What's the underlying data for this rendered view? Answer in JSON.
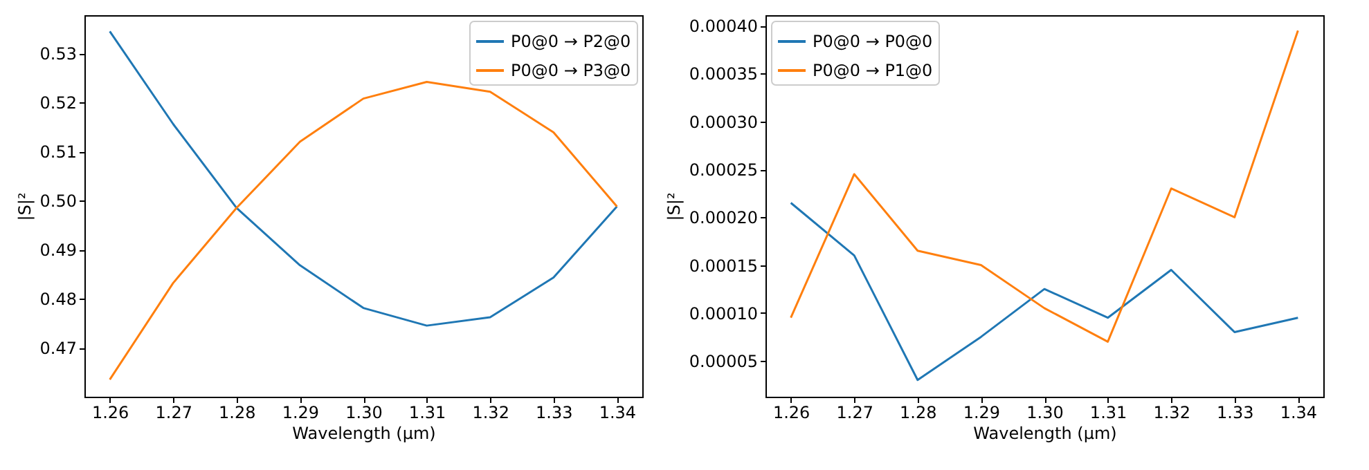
{
  "chart_data": [
    {
      "type": "line",
      "xlabel": "Wavelength (µm)",
      "ylabel": "|S|²",
      "legend": "top right",
      "grid": false,
      "x": [
        1.26,
        1.27,
        1.28,
        1.29,
        1.3,
        1.31,
        1.32,
        1.33,
        1.34
      ],
      "series": [
        {
          "name": "P0@0 → P2@0",
          "color": "#1f77b4",
          "values": [
            0.5345,
            0.5156,
            0.4985,
            0.4868,
            0.4781,
            0.4745,
            0.4762,
            0.4843,
            0.4988
          ]
        },
        {
          "name": "P0@0 → P3@0",
          "color": "#ff7f0e",
          "values": [
            0.4635,
            0.4832,
            0.4985,
            0.512,
            0.5208,
            0.5242,
            0.5222,
            0.5139,
            0.4988
          ]
        }
      ],
      "xlim": [
        1.256,
        1.344
      ],
      "ylim": [
        0.46,
        0.5378
      ],
      "xticks": [
        1.26,
        1.27,
        1.28,
        1.29,
        {
          "value": 1.3,
          "label": "1.30"
        },
        1.31,
        1.32,
        1.33,
        1.34
      ],
      "yticks": [
        0.47,
        0.48,
        0.49,
        {
          "value": 0.5,
          "label": "0.50"
        },
        0.51,
        0.52,
        0.53
      ]
    },
    {
      "type": "line",
      "xlabel": "Wavelength (µm)",
      "ylabel": "|S|²",
      "legend": "top left",
      "grid": false,
      "x": [
        1.26,
        1.27,
        1.28,
        1.29,
        1.3,
        1.31,
        1.32,
        1.33,
        1.34
      ],
      "series": [
        {
          "name": "P0@0 → P0@0",
          "color": "#1f77b4",
          "values": [
            0.000215,
            0.00016,
            3e-05,
            7.5e-05,
            0.000125,
            9.5e-05,
            0.000145,
            8e-05,
            9.5e-05
          ]
        },
        {
          "name": "P0@0 → P1@0",
          "color": "#ff7f0e",
          "values": [
            9.5e-05,
            0.000245,
            0.000165,
            0.00015,
            0.000105,
            7e-05,
            0.00023,
            0.0002,
            0.000395
          ]
        }
      ],
      "xlim": [
        1.256,
        1.344
      ],
      "ylim": [
        1.25e-05,
        0.000411
      ],
      "xticks": [
        1.26,
        1.27,
        1.28,
        1.29,
        {
          "value": 1.3,
          "label": "1.30"
        },
        1.31,
        1.32,
        1.33,
        1.34
      ],
      "yticks": [
        {
          "value": 5e-05,
          "label": "0.00005"
        },
        {
          "value": 0.0001,
          "label": "0.00010"
        },
        {
          "value": 0.00015,
          "label": "0.00015"
        },
        {
          "value": 0.0002,
          "label": "0.00020"
        },
        {
          "value": 0.00025,
          "label": "0.00025"
        },
        {
          "value": 0.0003,
          "label": "0.00030"
        },
        {
          "value": 0.00035,
          "label": "0.00035"
        },
        {
          "value": 0.0004,
          "label": "0.00040"
        }
      ]
    }
  ]
}
